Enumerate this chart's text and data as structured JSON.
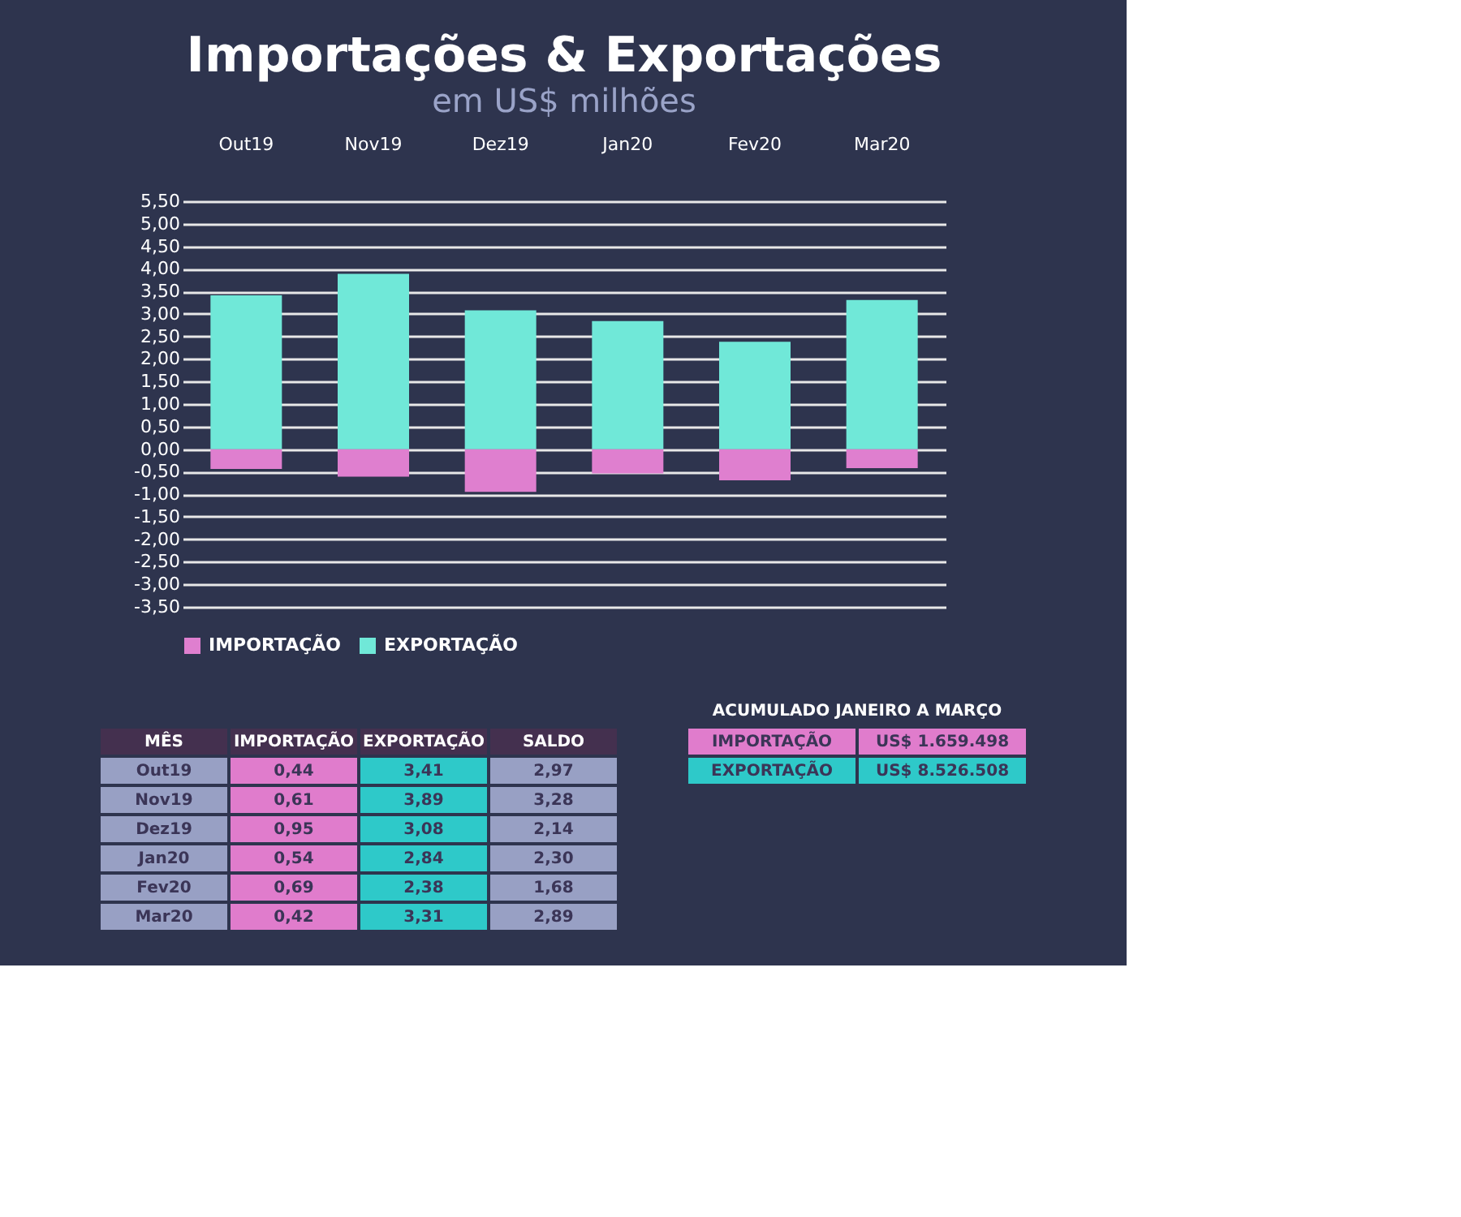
{
  "chart_data": [
    {
      "type": "bar",
      "title": "Importações & Exportações",
      "subtitle": "em US$ milhões",
      "categories": [
        "Out19",
        "Nov19",
        "Dez19",
        "Jan20",
        "Fev20",
        "Mar20"
      ],
      "stacked": true,
      "legend": "bottom",
      "grid": "y",
      "series": [
        {
          "name": "IMPORTAÇÃO",
          "color": "#df7fcf",
          "values": [
            -0.44,
            -0.61,
            -0.95,
            -0.54,
            -0.69,
            -0.42
          ]
        },
        {
          "name": "EXPORTAÇÃO",
          "color": "#70e8d8",
          "values": [
            3.41,
            3.89,
            3.08,
            2.84,
            2.38,
            3.31
          ]
        }
      ],
      "ylim": [
        -3.5,
        5.5
      ],
      "yticks": [
        {
          "value": 5.5,
          "label": "5,50"
        },
        {
          "value": 5,
          "label": "5,00"
        },
        {
          "value": 4.5,
          "label": "4,50"
        },
        {
          "value": 4,
          "label": "4,00"
        },
        {
          "value": 3.5,
          "label": "3,50"
        },
        {
          "value": 3,
          "label": "3,00"
        },
        {
          "value": 2.5,
          "label": "2,50"
        },
        {
          "value": 2,
          "label": "2,00"
        },
        {
          "value": 1.5,
          "label": "1,50"
        },
        {
          "value": 1,
          "label": "1,00"
        },
        {
          "value": 0.5,
          "label": "0,50"
        },
        {
          "value": 0,
          "label": "0,00"
        },
        {
          "value": -0.5,
          "label": "-0,50"
        },
        {
          "value": -1,
          "label": "-1,00"
        },
        {
          "value": -1.5,
          "label": "-1,50"
        },
        {
          "value": -2,
          "label": "-2,00"
        },
        {
          "value": -2.5,
          "label": "-2,50"
        },
        {
          "value": -3,
          "label": "-3,00"
        },
        {
          "value": -3.5,
          "label": "-3,50"
        }
      ]
    },
    {
      "type": "other",
      "categories": [
        "MÊS",
        "IMPORTAÇÃO",
        "EXPORTAÇÃO",
        "SALDO"
      ],
      "annotations": [
        "Out19",
        "0,44",
        "3,41",
        "2,97",
        "Nov19",
        "0,61",
        "3,89",
        "3,28",
        "Dez19",
        "0,95",
        "3,08",
        "2,14",
        "Jan20",
        "0,54",
        "2,84",
        "2,30",
        "Fev20",
        "0,69",
        "2,38",
        "1,68",
        "Mar20",
        "0,42",
        "3,31",
        "2,89"
      ]
    },
    {
      "type": "other",
      "title": "ACUMULADO JANEIRO A MARÇO",
      "annotations": [
        "IMPORTAÇÃO",
        "US$ 1.659.498",
        "EXPORTAÇÃO",
        "US$ 8.526.508"
      ]
    }
  ]
}
